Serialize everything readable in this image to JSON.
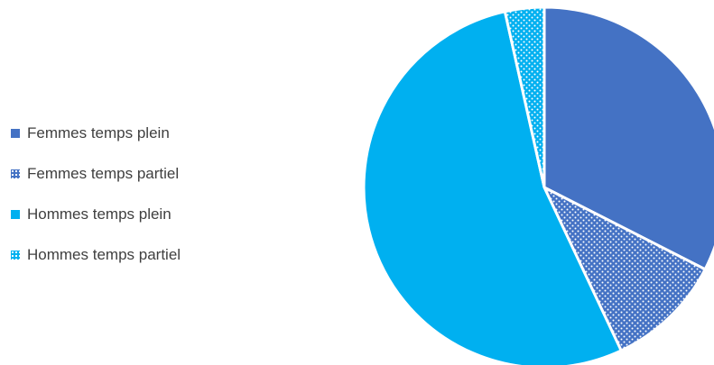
{
  "chart_data": {
    "type": "pie",
    "title": "",
    "legend_position": "left",
    "categories": [
      "Femmes temps plein",
      "Femmes temps partiel",
      "Hommes temps plein",
      "Hommes temps partiel"
    ],
    "values": [
      32.5,
      10.5,
      53.5,
      3.5
    ],
    "colors": [
      "#4472c4",
      "#4472c4",
      "#00b0f0",
      "#00b0f0"
    ],
    "patterns": [
      "solid",
      "dotted",
      "solid",
      "dotted"
    ]
  }
}
